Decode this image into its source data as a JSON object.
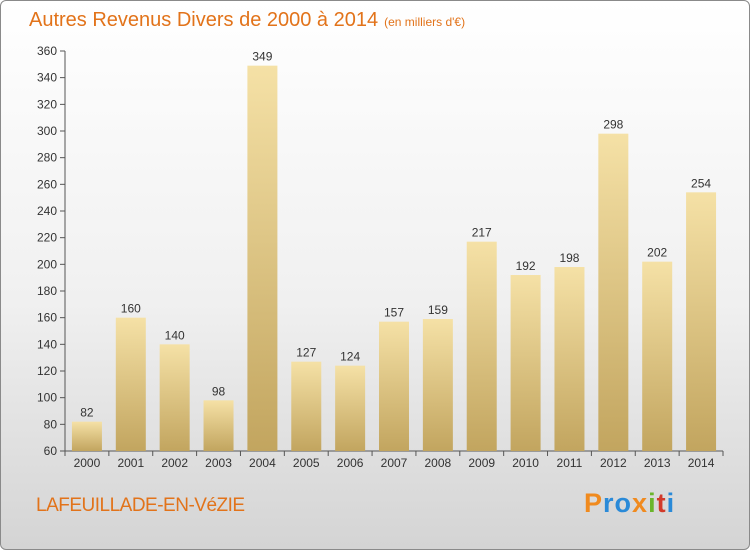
{
  "title": {
    "main": "Autres Revenus Divers de 2000 à 2014",
    "unit": "(en milliers d'€)"
  },
  "commune": "LAFEUILLADE-EN-VéZIE",
  "logo": {
    "letters": [
      "P",
      "r",
      "o",
      "x",
      "i",
      "t",
      "i"
    ],
    "colors": [
      "#f08a1e",
      "#2a8ad8",
      "#2a8ad8",
      "#f08a1e",
      "#6ab52b",
      "#d23a2a",
      "#2a8ad8"
    ]
  },
  "chart_data": {
    "type": "bar",
    "categories": [
      "2000",
      "2001",
      "2002",
      "2003",
      "2004",
      "2005",
      "2006",
      "2007",
      "2008",
      "2009",
      "2010",
      "2011",
      "2012",
      "2013",
      "2014"
    ],
    "values": [
      82,
      160,
      140,
      98,
      349,
      127,
      124,
      157,
      159,
      217,
      192,
      198,
      298,
      202,
      254
    ],
    "ylim": [
      60,
      360
    ],
    "yticks": [
      60,
      80,
      100,
      120,
      140,
      160,
      180,
      200,
      220,
      240,
      260,
      280,
      300,
      320,
      340,
      360
    ],
    "grid": false,
    "bar_colors": {
      "top": "#f5e1a6",
      "bottom": "#c2a55f"
    }
  }
}
